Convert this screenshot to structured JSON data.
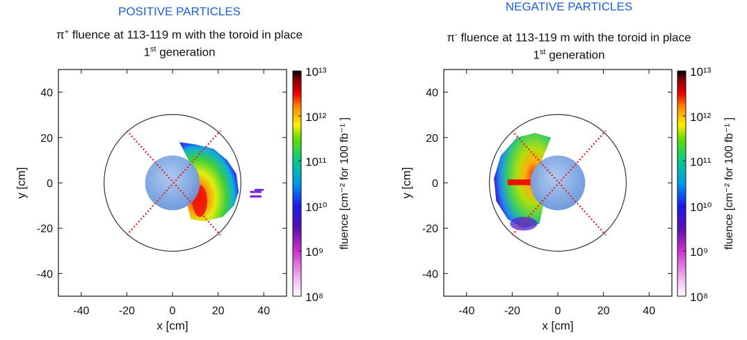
{
  "colors": {
    "header_blue": "#1f5ed1",
    "circle_fill": "#6f9ee0",
    "diagonal_red": "#e0262d",
    "frame": "#111111"
  },
  "chart_data": [
    {
      "type": "heatmap",
      "panel_header": "POSITIVE PARTICLES",
      "title_prefix": "π",
      "title_charge": "+",
      "title_rest": " fluence at 113-119 m with the toroid in place",
      "title_line2_num": "1",
      "title_line2_sup": "st",
      "title_line2_rest": " generation",
      "xlabel": "x [cm]",
      "ylabel": "y [cm]",
      "xlim": [
        -50,
        50
      ],
      "ylim": [
        -50,
        50
      ],
      "x_ticks": [
        "-40",
        "-20",
        "0",
        "20",
        "40"
      ],
      "y_ticks": [
        "40",
        "20",
        "0",
        "-20",
        "-40"
      ],
      "colorbar_label": "fluence [cm⁻² for 100 fb⁻¹ ]",
      "colorbar_scale": "log",
      "colorbar_ticks": [
        "10¹³",
        "10¹²",
        "10¹¹",
        "10¹⁰",
        "10⁹",
        "10⁸"
      ],
      "colorbar_range": [
        100000000.0,
        10000000000000.0
      ],
      "outer_circle": {
        "cx": 0,
        "cy": 0,
        "r": 30
      },
      "inner_disk": {
        "cx": 0,
        "cy": 0,
        "r": 12
      },
      "diagonal_endpoints": [
        [
          -20,
          -23
        ],
        [
          21,
          23
        ]
      ],
      "fluence_region": "right half, x from 0 to 30 cm, peak near (12, -8)"
    },
    {
      "type": "heatmap",
      "panel_header": "NEGATIVE PARTICLES",
      "title_prefix": "π",
      "title_charge": "-",
      "title_rest": " fluence at 113-119 m with the toroid in place",
      "title_line2_num": "1",
      "title_line2_sup": "st",
      "title_line2_rest": " generation",
      "xlabel": "x [cm]",
      "ylabel": "y [cm]",
      "xlim": [
        -50,
        50
      ],
      "ylim": [
        -50,
        50
      ],
      "x_ticks": [
        "-40",
        "-20",
        "0",
        "20",
        "40"
      ],
      "y_ticks": [
        "40",
        "20",
        "0",
        "-20",
        "-40"
      ],
      "colorbar_label": "fluence [cm⁻² for 100 fb⁻¹ ]",
      "colorbar_scale": "log",
      "colorbar_ticks": [
        "10¹³",
        "10¹²",
        "10¹¹",
        "10¹⁰",
        "10⁹",
        "10⁸"
      ],
      "colorbar_range": [
        100000000.0,
        10000000000000.0
      ],
      "outer_circle": {
        "cx": 0,
        "cy": 0,
        "r": 30
      },
      "inner_disk": {
        "cx": 0,
        "cy": 0,
        "r": 12
      },
      "diagonal_endpoints": [
        [
          -20,
          -23
        ],
        [
          21,
          23
        ]
      ],
      "fluence_region": "left half, x from -30 to 0 cm, peak near (-18, 1)"
    }
  ]
}
